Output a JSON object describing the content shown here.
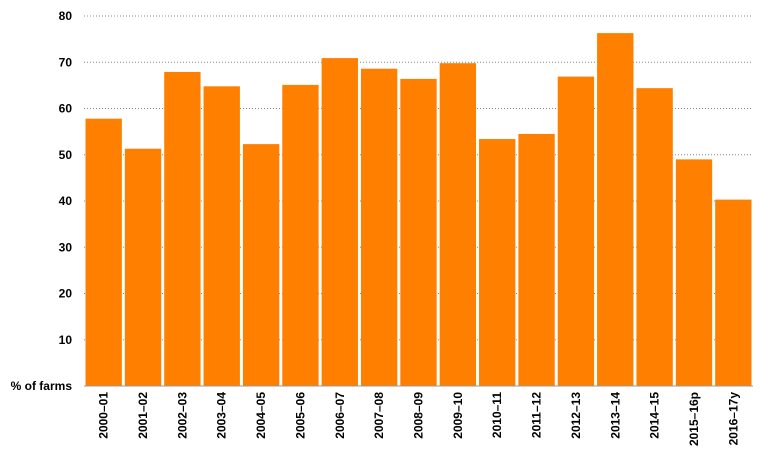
{
  "chart_data": {
    "type": "bar",
    "title": "",
    "xlabel": "",
    "ylabel": "% of farms",
    "ylim": [
      0,
      80
    ],
    "yticks": [
      10,
      20,
      30,
      40,
      50,
      60,
      70,
      80
    ],
    "grid": true,
    "bar_color": "#FF7F00",
    "categories": [
      "2000–01",
      "2001–02",
      "2002–03",
      "2003–04",
      "2004–05",
      "2005–06",
      "2006–07",
      "2007–08",
      "2008–09",
      "2009–10",
      "2010–11",
      "2011–12",
      "2012–13",
      "2013–14",
      "2014–15",
      "2015–16p",
      "2016–17y"
    ],
    "values": [
      57.8,
      51.3,
      67.9,
      64.8,
      52.3,
      65.1,
      70.9,
      68.6,
      66.4,
      69.8,
      53.4,
      54.5,
      66.9,
      76.3,
      64.4,
      49.0,
      40.3
    ]
  }
}
